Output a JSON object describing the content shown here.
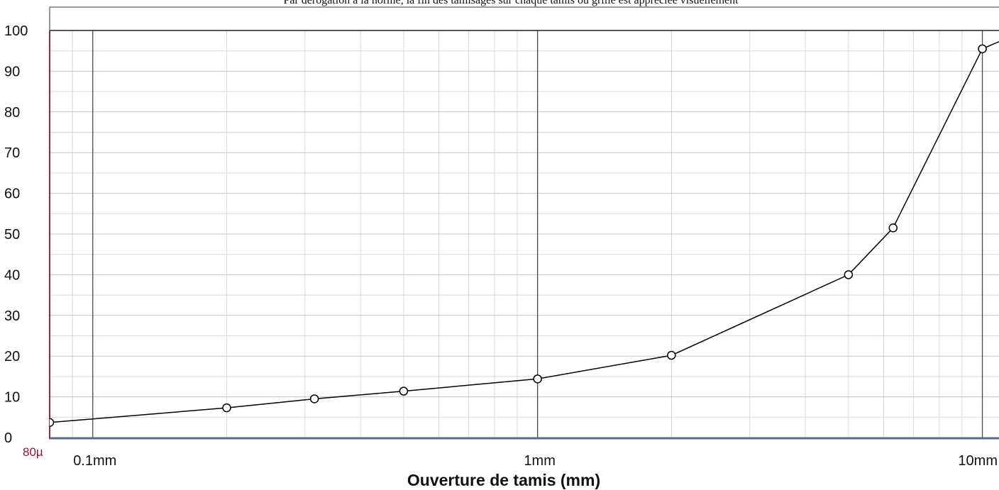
{
  "top_note": "Par dérogation à la norme, la fin des tamisages sur chaque tamis ou grille est appréciée visuellement",
  "colors": {
    "curve": "#000000",
    "minor_grid": "#d9d9d9",
    "major_grid": "#4a4a4a",
    "left_axis": "#a3243b",
    "bottom_axis": "#5a6a85",
    "red_label": "#8b1c2c"
  },
  "chart_data": {
    "type": "line",
    "title": "",
    "xlabel": "Ouverture de tamis (mm)",
    "ylabel": "",
    "x_scale": "log",
    "xlim": [
      0.08,
      10.9
    ],
    "ylim": [
      0,
      100
    ],
    "grid": true,
    "y_ticks": [
      "0",
      "10",
      "20",
      "30",
      "40",
      "50",
      "60",
      "70",
      "80",
      "90",
      "100"
    ],
    "x_ticks": [
      {
        "value": 0.08,
        "label": "80µ",
        "color": "red"
      },
      {
        "value": 0.1,
        "label": "0.1mm"
      },
      {
        "value": 1,
        "label": "1mm"
      },
      {
        "value": 10,
        "label": "10mm"
      }
    ],
    "series": [
      {
        "marker": "open-circle",
        "x": [
          0.08,
          0.2,
          0.315,
          0.5,
          1,
          2,
          5,
          6.3,
          10,
          12.5
        ],
        "y": [
          3.7,
          7.3,
          9.5,
          11.4,
          14.4,
          20.2,
          40,
          51.5,
          95.5,
          100
        ]
      }
    ]
  }
}
